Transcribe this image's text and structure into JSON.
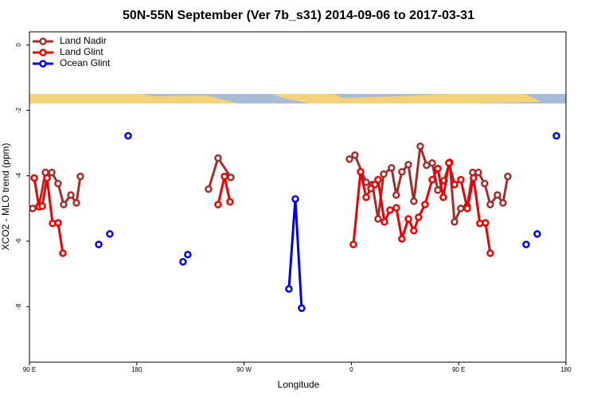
{
  "chart_data": {
    "type": "line",
    "title": "50N-55N September (Ver 7b_s31)   2014-09-06 to 2017-03-31",
    "x_label": "Longitude",
    "y_label": "XCO2 - MLO trend (ppm)",
    "xlim": [
      90,
      540
    ],
    "ylim": [
      -9.7,
      0.4
    ],
    "xticks": [
      {
        "value": 90,
        "label": "90 E"
      },
      180,
      {
        "value": 270,
        "label": "90 W"
      },
      {
        "value": 360,
        "label": "0"
      },
      {
        "value": 450,
        "label": "90 E"
      },
      {
        "value": 540,
        "label": "180"
      }
    ],
    "yticks": [
      0,
      -2,
      -4,
      -6,
      -8
    ],
    "legend": "top-left",
    "series": [
      {
        "name": "Land Nadir",
        "color": "#a0302c",
        "x": [
          92.7,
          98.0,
          103.4,
          108.7,
          114.0,
          118.7,
          124.7,
          129.4,
          132.7,
          null,
          240.2,
          248.2,
          258.9,
          null,
          358.4,
          363.0,
          372.4,
          377.7,
          382.4,
          387.1,
          393.7,
          397.7,
          402.4,
          407.8,
          412.4,
          417.8,
          423.1,
          427.8,
          432.5,
          437.8,
          442.5,
          446.5,
          451.8,
          457.2,
          461.8,
          466.5,
          471.8,
          476.5,
          482.5,
          487.2,
          491.2
        ],
        "values": [
          -5.0,
          -4.93,
          -3.9,
          -3.9,
          -4.24,
          -4.88,
          -4.59,
          -4.83,
          -4.02,
          null,
          -4.41,
          -3.46,
          -4.05,
          null,
          -3.49,
          -3.37,
          -4.2,
          -4.27,
          -5.32,
          -3.95,
          -3.76,
          -4.59,
          -3.88,
          -3.66,
          -4.78,
          -3.1,
          -3.68,
          -3.61,
          -4.44,
          -4.15,
          -3.59,
          -5.41,
          -5.0,
          -4.93,
          -3.9,
          -3.9,
          -4.24,
          -4.88,
          -4.59,
          -4.83,
          -4.02
        ]
      },
      {
        "name": "Land Glint",
        "color": "#ee0000",
        "x": [
          94.0,
          98.0,
          100.7,
          104.7,
          109.4,
          114.0,
          118.0,
          null,
          248.2,
          253.6,
          258.2,
          null,
          361.7,
          367.7,
          372.4,
          376.4,
          379.7,
          382.4,
          387.7,
          392.4,
          397.7,
          402.4,
          407.8,
          412.4,
          416.4,
          421.8,
          427.8,
          432.5,
          437.1,
          441.8,
          446.5,
          451.8,
          457.2,
          462.5,
          467.8,
          472.5,
          476.5
        ],
        "values": [
          -4.07,
          -4.95,
          -4.93,
          -4.07,
          -5.46,
          -5.44,
          -6.37,
          null,
          -4.88,
          -4.02,
          -4.8,
          null,
          -6.1,
          -3.88,
          -4.66,
          -4.39,
          -4.27,
          -4.12,
          -5.41,
          -5.05,
          -4.98,
          -5.93,
          -5.32,
          -5.68,
          -5.27,
          -4.88,
          -4.12,
          -3.78,
          -4.66,
          -3.61,
          -4.27,
          -4.12,
          -5.0,
          -4.07,
          -5.46,
          -5.44,
          -6.37
        ]
      },
      {
        "name": "Ocean Glint",
        "color": "#0000ee",
        "x": [
          148.1,
          null,
          157.4,
          null,
          172.8,
          null,
          218.8,
          null,
          222.8,
          null,
          307.6,
          313.0,
          318.3,
          null,
          506.6,
          null,
          515.9,
          null,
          532.0
        ],
        "values": [
          -6.1,
          null,
          -5.78,
          null,
          -2.78,
          null,
          -6.63,
          null,
          -6.41,
          null,
          -7.46,
          -4.71,
          -8.05,
          null,
          -6.1,
          null,
          -5.78,
          null,
          -2.78
        ]
      }
    ]
  }
}
